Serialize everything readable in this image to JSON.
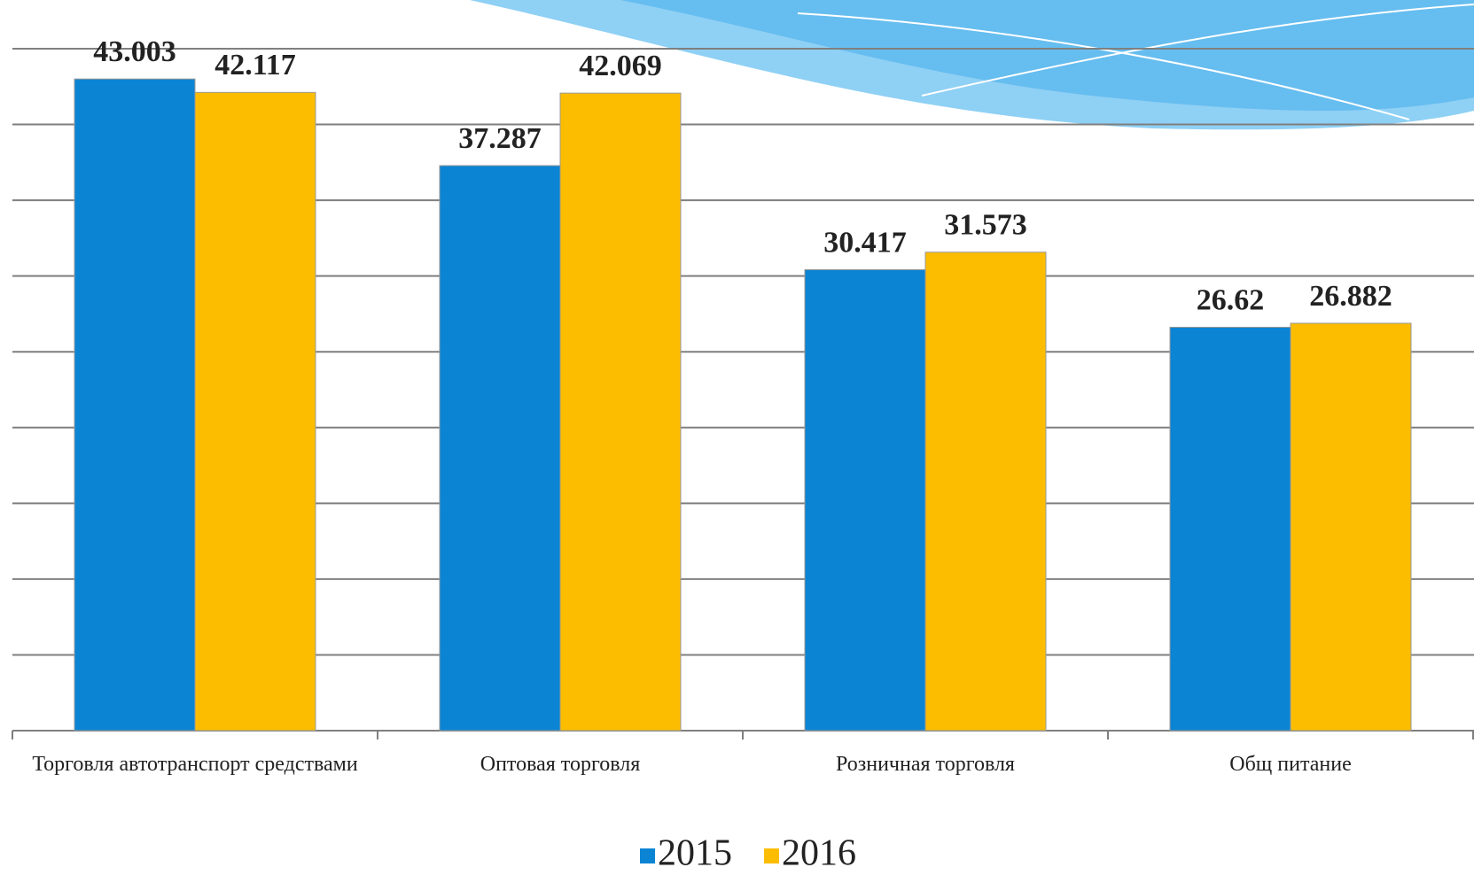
{
  "chart_data": {
    "type": "bar",
    "categories": [
      "Торговля автотранспорт средствами",
      "Оптовая торговля",
      "Розничная торговля",
      "Общ питание"
    ],
    "series": [
      {
        "name": "2015",
        "color": "#0c84d4",
        "values": [
          43.003,
          37.287,
          30.417,
          26.62
        ]
      },
      {
        "name": "2016",
        "color": "#fcbd00",
        "values": [
          42.117,
          42.069,
          31.573,
          26.882
        ]
      }
    ],
    "ylim": [
      0,
      45
    ],
    "yticks": [
      0,
      5,
      10,
      15,
      20,
      25,
      30,
      35,
      40,
      45
    ],
    "grid": true,
    "legend": "bottom"
  }
}
